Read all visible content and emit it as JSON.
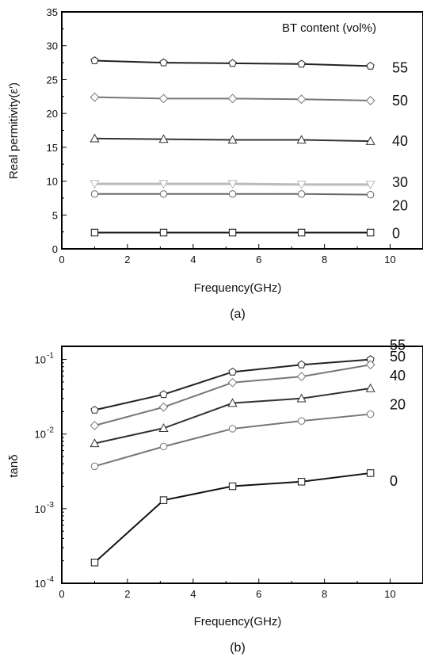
{
  "chart_data": [
    {
      "type": "line",
      "caption": "(a)",
      "xlabel": "Frequency(GHz)",
      "ylabel": "Real permitivity(ε′)",
      "legend_title": "BT content (vol%)",
      "xlim": [
        0,
        11
      ],
      "ylim": [
        0,
        35
      ],
      "x_ticks": [
        "0",
        "2",
        "4",
        "6",
        "8",
        "10"
      ],
      "y_ticks": [
        "0",
        "5",
        "10",
        "15",
        "20",
        "25",
        "30",
        "35"
      ],
      "x": [
        1.0,
        3.1,
        5.2,
        7.3,
        9.4
      ],
      "series": [
        {
          "name": "55",
          "marker": "pentagon",
          "color": "#222222",
          "values": [
            27.8,
            27.5,
            27.4,
            27.3,
            27.0
          ]
        },
        {
          "name": "50",
          "marker": "diamond",
          "color": "#777777",
          "values": [
            22.4,
            22.2,
            22.2,
            22.1,
            21.9
          ]
        },
        {
          "name": "40",
          "marker": "triangle-up",
          "color": "#333333",
          "values": [
            16.3,
            16.2,
            16.1,
            16.1,
            15.9
          ]
        },
        {
          "name": "30",
          "marker": "triangle-down",
          "color": "#bbbbbb",
          "values": [
            9.6,
            9.6,
            9.6,
            9.5,
            9.5
          ]
        },
        {
          "name": "20",
          "marker": "circle",
          "color": "#666666",
          "values": [
            8.1,
            8.1,
            8.1,
            8.1,
            8.0
          ]
        },
        {
          "name": "0",
          "marker": "square",
          "color": "#111111",
          "values": [
            2.4,
            2.4,
            2.4,
            2.4,
            2.4
          ]
        }
      ]
    },
    {
      "type": "line",
      "caption": "(b)",
      "xlabel": "Frequency(GHz)",
      "ylabel": "tanδ",
      "yscale": "log",
      "xlim": [
        0,
        11
      ],
      "ylim": [
        0.0001,
        0.15
      ],
      "x_ticks": [
        "0",
        "2",
        "4",
        "6",
        "8",
        "10"
      ],
      "y_tick_values": [
        0.0001,
        0.001,
        0.01,
        0.1
      ],
      "x": [
        1.0,
        3.1,
        5.2,
        7.3,
        9.4
      ],
      "series": [
        {
          "name": "55",
          "marker": "pentagon",
          "color": "#222222",
          "values": [
            0.021,
            0.034,
            0.068,
            0.085,
            0.1
          ]
        },
        {
          "name": "50",
          "marker": "diamond",
          "color": "#777777",
          "values": [
            0.013,
            0.023,
            0.049,
            0.059,
            0.085
          ]
        },
        {
          "name": "40",
          "marker": "triangle-up",
          "color": "#333333",
          "values": [
            0.0075,
            0.012,
            0.026,
            0.03,
            0.041
          ]
        },
        {
          "name": "20",
          "marker": "circle",
          "color": "#777777",
          "values": [
            0.0037,
            0.0068,
            0.0118,
            0.015,
            0.0185
          ]
        },
        {
          "name": "0",
          "marker": "square",
          "color": "#111111",
          "values": [
            0.00019,
            0.0013,
            0.002,
            0.0023,
            0.003
          ]
        }
      ]
    }
  ]
}
